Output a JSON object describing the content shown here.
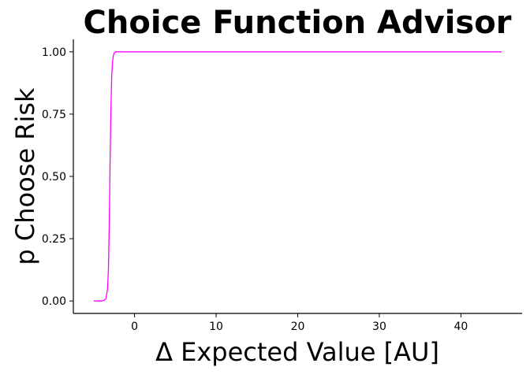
{
  "chart_data": {
    "type": "line",
    "title": "Choice Function Advisor",
    "xlabel": "Δ Expected Value [AU]",
    "ylabel": "p Choose Risk",
    "xlim": [
      -7.5,
      47.5
    ],
    "ylim": [
      -0.05,
      1.05
    ],
    "xticks": [
      0,
      10,
      20,
      30,
      40
    ],
    "xtick_labels": [
      "0",
      "10",
      "20",
      "30",
      "40"
    ],
    "yticks": [
      0,
      0.25,
      0.5,
      0.75,
      1.0
    ],
    "ytick_labels": [
      "0.00",
      "0.25",
      "0.50",
      "0.75",
      "1.00"
    ],
    "grid": false,
    "series": [
      {
        "color": "#ff00ff",
        "x": [
          -5,
          -4,
          -3.7,
          -3.5,
          -3.3,
          -3.2,
          -3.1,
          -3.0,
          -2.9,
          -2.8,
          -2.7,
          -2.6,
          -2.5,
          -2.3,
          -2.0,
          0,
          10,
          20,
          30,
          40,
          45
        ],
        "y": [
          0.0,
          0.0,
          0.003,
          0.01,
          0.05,
          0.13,
          0.3,
          0.55,
          0.76,
          0.9,
          0.96,
          0.985,
          0.995,
          1.0,
          1.0,
          1.0,
          1.0,
          1.0,
          1.0,
          1.0,
          1.0
        ]
      }
    ]
  }
}
